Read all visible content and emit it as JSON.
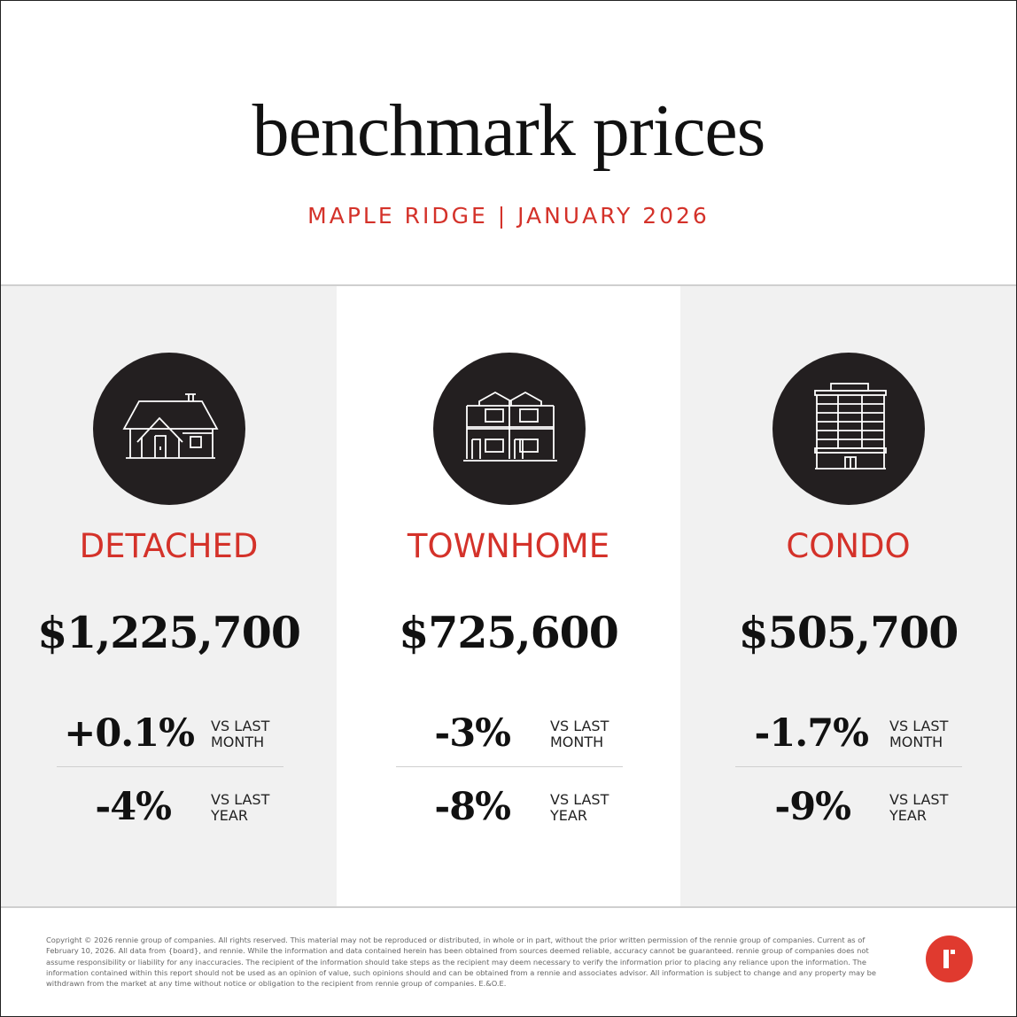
{
  "header": {
    "title": "benchmark prices",
    "subtitle": "MAPLE RIDGE | JANUARY 2026"
  },
  "colors": {
    "accent": "#d4322a",
    "logo": "#e03a2f",
    "icon_bg": "#231f20",
    "panel_gray": "#f1f1f1"
  },
  "columns": [
    {
      "icon": "house-icon",
      "type": "DETACHED",
      "price": "$1,225,700",
      "monthly_change": "+0.1%",
      "monthly_label_1": "VS LAST",
      "monthly_label_2": "MONTH",
      "yearly_change": "-4%",
      "yearly_label_1": "VS LAST",
      "yearly_label_2": "YEAR"
    },
    {
      "icon": "townhome-icon",
      "type": "TOWNHOME",
      "price": "$725,600",
      "monthly_change": "-3%",
      "monthly_label_1": "VS LAST",
      "monthly_label_2": "MONTH",
      "yearly_change": "-8%",
      "yearly_label_1": "VS LAST",
      "yearly_label_2": "YEAR"
    },
    {
      "icon": "condo-building-icon",
      "type": "CONDO",
      "price": "$505,700",
      "monthly_change": "-1.7%",
      "monthly_label_1": "VS LAST",
      "monthly_label_2": "MONTH",
      "yearly_change": "-9%",
      "yearly_label_1": "VS LAST",
      "yearly_label_2": "YEAR"
    }
  ],
  "footer": {
    "disclaimer": "Copyright © 2026 rennie group of companies. All rights reserved. This material may not be reproduced or distributed, in whole or in part, without the prior written permission of the rennie group of companies. Current as of February 10, 2026. All data from {board}, and rennie. While the information and data contained herein has been obtained from sources deemed reliable, accuracy cannot be guaranteed. rennie group of companies does not assume responsibility or liability for any inaccuracies. The recipient of the information should take steps as the recipient may deem necessary to verify the information prior to placing any reliance upon the information. The information contained within this report should not be used as an opinion of value, such opinions should and can be obtained from a rennie and associates advisor. All information is subject to change and any property may be withdrawn from the market at any time without notice or obligation to the recipient from rennie group of companies. E.&O.E.",
    "logo_icon": "rennie-logo-icon"
  }
}
